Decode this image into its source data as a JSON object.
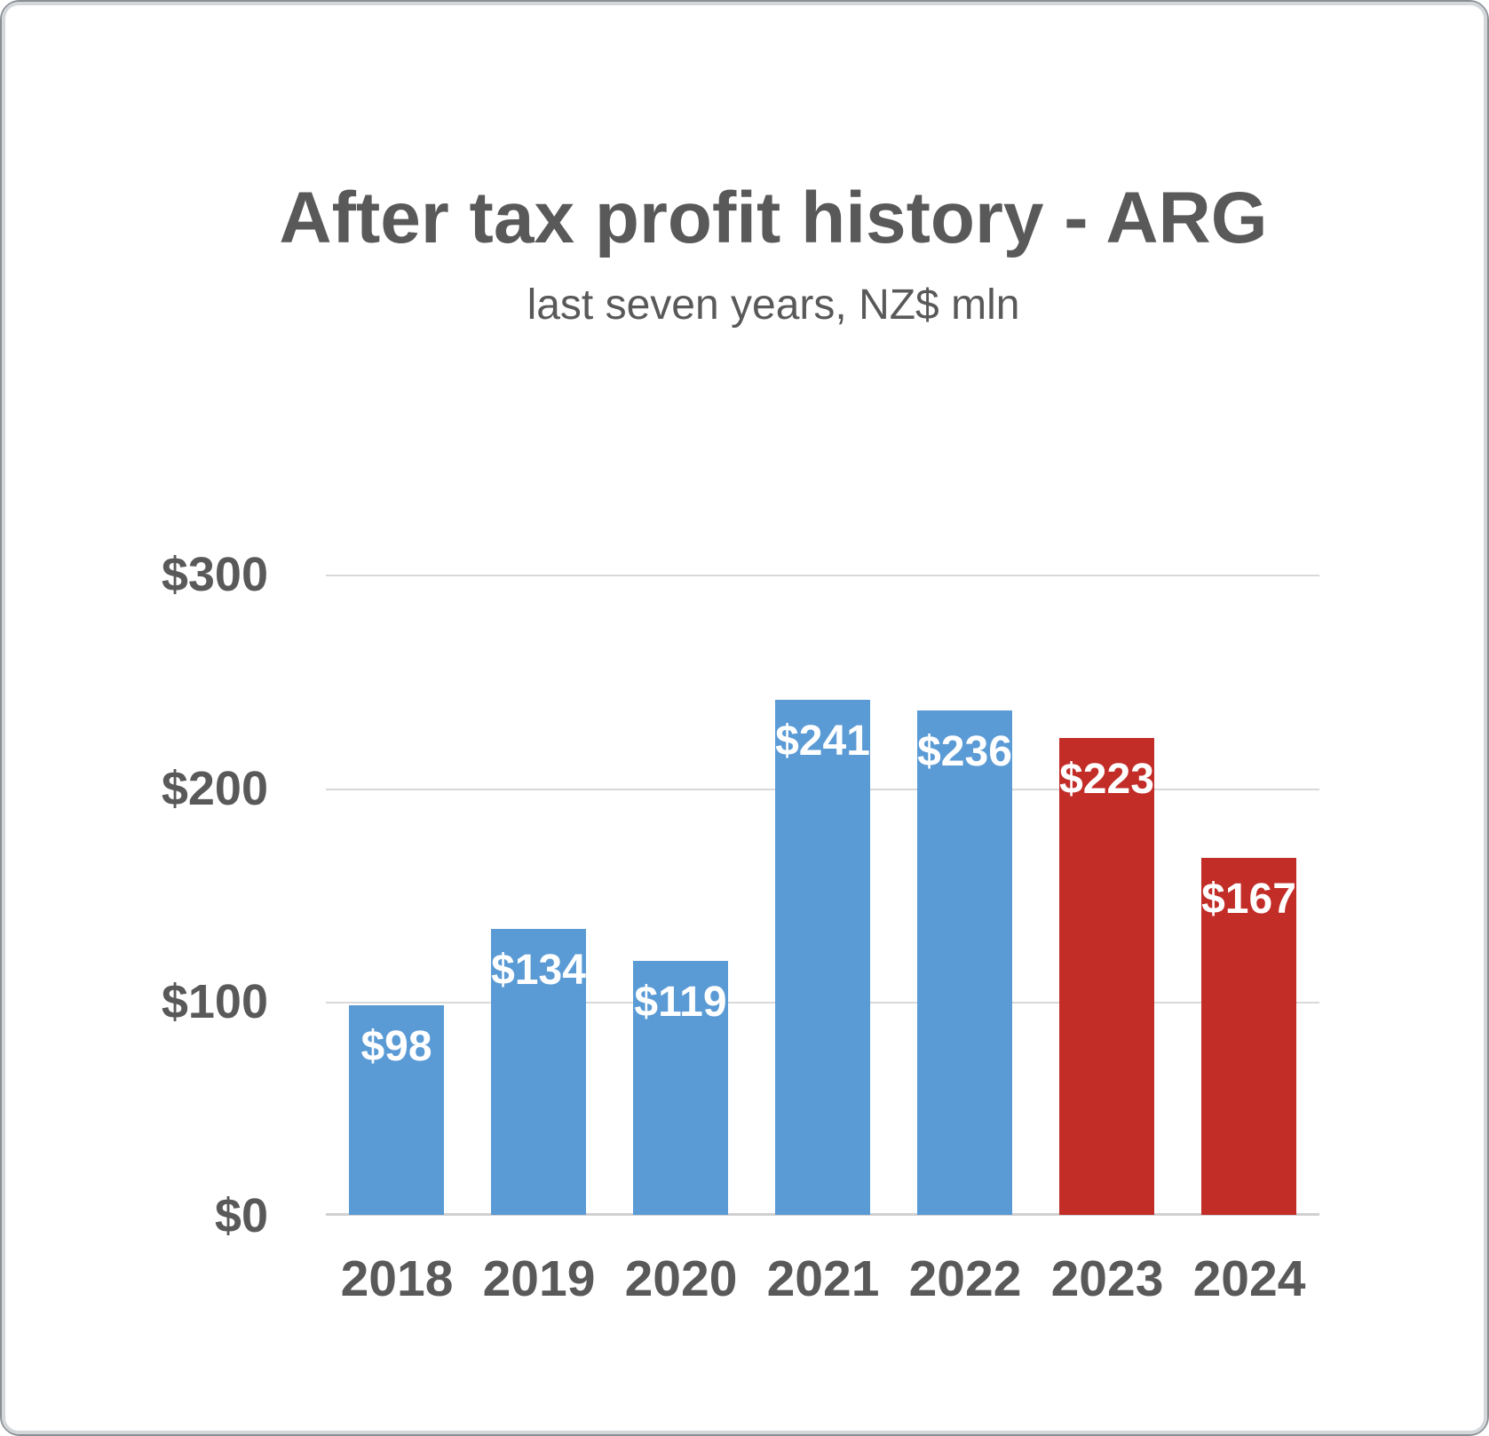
{
  "chart_data": {
    "type": "bar",
    "title": "After tax profit history - ARG",
    "subtitle": "last seven years, NZ$ mln",
    "categories": [
      "2018",
      "2019",
      "2020",
      "2021",
      "2022",
      "2023",
      "2024"
    ],
    "values": [
      98,
      134,
      119,
      241,
      236,
      223,
      167
    ],
    "data_labels": [
      "$98",
      "$134",
      "$119",
      "$241",
      "$236",
      "$223",
      "$167"
    ],
    "bar_colors": [
      "#5B9BD5",
      "#5B9BD5",
      "#5B9BD5",
      "#5B9BD5",
      "#5B9BD5",
      "#C22D28",
      "#C22D28"
    ],
    "highlight_index": 6,
    "xlabel": "",
    "ylabel": "",
    "ylim": [
      0,
      300
    ],
    "yticks": [
      {
        "value": 300,
        "label": "$300"
      },
      {
        "value": 200,
        "label": "$200"
      },
      {
        "value": 100,
        "label": "$100"
      },
      {
        "value": 0,
        "label": "$0"
      }
    ],
    "grid": true,
    "legend": false
  },
  "colors": {
    "default_bar": "#5B9BD5",
    "highlight_bar": "#C22D28",
    "bar_label_text": "#FFFFFF",
    "axis_text": "#595959",
    "title_text": "#595959",
    "gridline": "#D9D9D9",
    "baseline": "#D0D0D0",
    "frame_inner": "#D4D7DA",
    "frame_outer": "#8A8F94",
    "background": "#FFFFFF"
  }
}
